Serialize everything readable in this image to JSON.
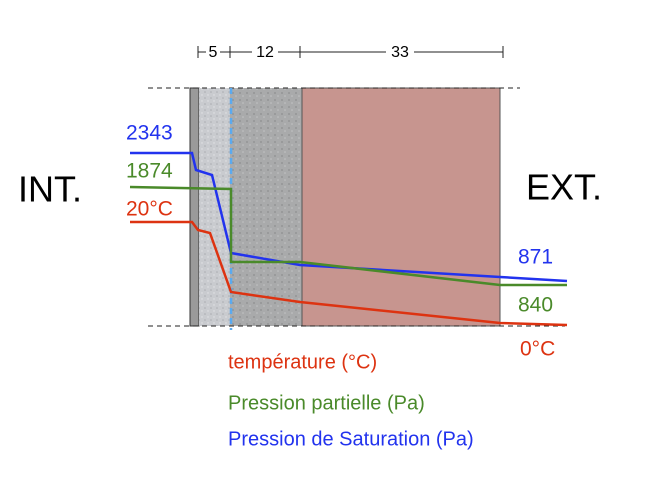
{
  "dimensions": [
    "5",
    "12",
    "33"
  ],
  "sides": {
    "interior": "INT.",
    "exterior": "EXT."
  },
  "left_values": {
    "saturation": "2343",
    "partial": "1874",
    "temperature": "20°C"
  },
  "right_values": {
    "saturation": "871",
    "partial": "840",
    "temperature": "0°C"
  },
  "legend": {
    "temperature": "température (°C)",
    "partial": "Pression partielle (Pa)",
    "saturation": "Pression de Saturation (Pa)"
  }
}
